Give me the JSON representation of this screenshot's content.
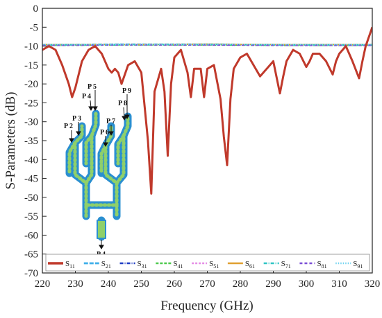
{
  "chart_data": {
    "type": "line",
    "xlabel": "Frequency (GHz)",
    "ylabel": "S-Parameters (dB)",
    "xlim": [
      220,
      320
    ],
    "ylim": [
      -70,
      0
    ],
    "x_ticks": [
      "220",
      "230",
      "240",
      "250",
      "260",
      "270",
      "280",
      "290",
      "300",
      "310",
      "320"
    ],
    "y_ticks": [
      "0",
      "-5",
      "-10",
      "-15",
      "-20",
      "-25",
      "-30",
      "-35",
      "-40",
      "-45",
      "-50",
      "-55",
      "-60",
      "-65",
      "-70"
    ],
    "grid": false,
    "legend_position": "bottom",
    "series": [
      {
        "name": "S11",
        "sub": "11",
        "color": "#c0392b",
        "x": [
          220,
          222,
          224,
          226,
          228,
          229,
          230,
          232,
          234,
          236,
          238,
          240,
          241,
          242,
          243,
          244,
          246,
          248,
          250,
          252,
          253,
          254,
          256,
          257,
          258,
          259,
          260,
          262,
          264,
          265,
          266,
          268,
          269,
          270,
          272,
          274,
          275,
          276,
          277,
          278,
          280,
          282,
          284,
          286,
          288,
          290,
          292,
          293,
          294,
          296,
          298,
          300,
          301,
          302,
          304,
          306,
          308,
          309,
          310,
          312,
          314,
          316,
          317,
          318,
          320
        ],
        "y": [
          -11,
          -10,
          -11,
          -15,
          -20,
          -23.5,
          -21,
          -14,
          -11,
          -10,
          -12,
          -16,
          -17,
          -16,
          -17,
          -20,
          -15,
          -14,
          -17,
          -35,
          -49,
          -22,
          -16,
          -22,
          -39,
          -20,
          -13,
          -11,
          -17,
          -23.5,
          -16,
          -16,
          -23.5,
          -16,
          -15,
          -24,
          -34,
          -41.5,
          -24,
          -16,
          -13,
          -12,
          -15,
          -18,
          -16,
          -14,
          -22.5,
          -18,
          -14,
          -11,
          -12,
          -15.5,
          -14,
          -12,
          -12,
          -14,
          -17.5,
          -14,
          -12,
          -10,
          -14,
          -18.5,
          -14,
          -10,
          -5
        ]
      },
      {
        "name": "S21",
        "sub": "21",
        "color": "#3daee9",
        "x": [
          220,
          245,
          270,
          295,
          320
        ],
        "y": [
          -9.6,
          -9.5,
          -9.5,
          -9.6,
          -9.6
        ]
      },
      {
        "name": "S31",
        "sub": "31",
        "color": "#1f3cc4",
        "x": [
          220,
          245,
          270,
          295,
          320
        ],
        "y": [
          -9.7,
          -9.6,
          -9.6,
          -9.7,
          -9.7
        ]
      },
      {
        "name": "S41",
        "sub": "41",
        "color": "#4cc94c",
        "x": [
          220,
          245,
          270,
          295,
          320
        ],
        "y": [
          -9.8,
          -9.7,
          -9.7,
          -9.8,
          -9.8
        ]
      },
      {
        "name": "S51",
        "sub": "51",
        "color": "#e58ce6",
        "x": [
          220,
          245,
          270,
          295,
          320
        ],
        "y": [
          -9.7,
          -9.6,
          -9.6,
          -9.7,
          -9.7
        ]
      },
      {
        "name": "S61",
        "sub": "61",
        "color": "#e0a030",
        "x": [
          220,
          245,
          270,
          295,
          320
        ],
        "y": [
          -9.6,
          -9.6,
          -9.5,
          -9.6,
          -9.6
        ]
      },
      {
        "name": "S71",
        "sub": "71",
        "color": "#2ec4c4",
        "x": [
          220,
          245,
          270,
          295,
          320
        ],
        "y": [
          -9.7,
          -9.6,
          -9.6,
          -9.7,
          -9.7
        ]
      },
      {
        "name": "S81",
        "sub": "81",
        "color": "#7b4fd6",
        "x": [
          220,
          245,
          270,
          295,
          320
        ],
        "y": [
          -9.8,
          -9.7,
          -9.7,
          -9.8,
          -9.8
        ]
      },
      {
        "name": "S91",
        "sub": "91",
        "color": "#6fd3f0",
        "x": [
          220,
          245,
          270,
          295,
          320
        ],
        "y": [
          -9.6,
          -9.6,
          -9.5,
          -9.6,
          -9.6
        ]
      }
    ],
    "inset_labels": [
      "P 2",
      "P 3",
      "P 4",
      "P 5",
      "P 6",
      "P 7",
      "P 8",
      "P 9",
      "P 4"
    ]
  }
}
